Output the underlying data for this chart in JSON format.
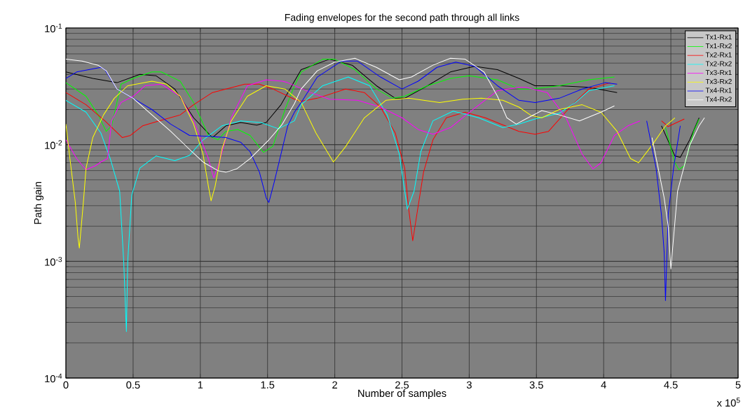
{
  "chart_data": {
    "type": "line",
    "title": "Fading envelopes for the second path through all links",
    "xlabel": "Number of samples",
    "ylabel": "Path gain",
    "annotations": [
      "x 10$^{5}$"
    ],
    "log": "y",
    "grid": true,
    "legend": "top right",
    "line_style": "solid",
    "xlim": [
      0,
      5
    ],
    "ylim": [
      0.0001,
      0.1
    ],
    "xticks": [
      0,
      0.5,
      1,
      1.5,
      2,
      2.5,
      3,
      3.5,
      4,
      4.5,
      5
    ],
    "yticks": [
      {
        "value": 0.0001,
        "label": "10$^{-4}$"
      },
      {
        "value": 0.001,
        "label": "10$^{-3}$"
      },
      {
        "value": 0.01,
        "label": "10$^{-2}$"
      },
      {
        "value": 0.1,
        "label": "10$^{-1}$"
      }
    ],
    "series": [
      {
        "name": "Tx1-Rx1",
        "color": "#000000",
        "x": [
          0,
          0.2,
          0.38,
          0.55,
          0.67,
          0.81,
          0.95,
          1.09,
          1.19,
          1.3,
          1.42,
          1.49,
          1.6,
          1.7,
          1.75,
          1.96,
          2.13,
          2.31,
          2.45,
          2.52,
          2.69,
          2.86,
          3.04,
          3.21,
          3.37,
          3.49,
          3.67,
          3.89,
          4.1,
          4.3,
          4.43,
          4.53,
          4.57,
          4.64,
          4.71
        ],
        "values": [
          0.042,
          0.037,
          0.034,
          0.04,
          0.039,
          0.03,
          0.017,
          0.0115,
          0.0145,
          0.0155,
          0.0147,
          0.0155,
          0.022,
          0.035,
          0.044,
          0.054,
          0.048,
          0.032,
          0.025,
          0.025,
          0.032,
          0.042,
          0.047,
          0.044,
          0.037,
          0.032,
          0.032,
          0.031,
          0.028,
          null,
          0.0145,
          0.008,
          0.0078,
          0.011,
          0.017
        ]
      },
      {
        "name": "Tx1-Rx2",
        "color": "#00ff00",
        "x": [
          0,
          0.15,
          0.24,
          0.3,
          0.34,
          0.41,
          0.5,
          0.64,
          0.71,
          0.85,
          0.95,
          1.06,
          1.13,
          1.19,
          1.28,
          1.37,
          1.47,
          1.54,
          1.63,
          1.7,
          1.75,
          1.91,
          2.0,
          2.15,
          2.31,
          2.43,
          2.52,
          2.69,
          2.86,
          3.0,
          3.21,
          3.37,
          3.47,
          3.67,
          3.89,
          4.08,
          4.3,
          4.46,
          4.53,
          4.56,
          4.6,
          4.67,
          4.71
        ],
        "values": [
          0.034,
          0.026,
          0.018,
          0.013,
          0.0145,
          0.033,
          0.037,
          0.042,
          0.042,
          0.035,
          0.023,
          0.012,
          0.011,
          0.013,
          0.0135,
          0.012,
          0.0086,
          0.0097,
          0.02,
          0.032,
          0.042,
          0.054,
          0.054,
          0.044,
          0.03,
          0.025,
          0.026,
          0.032,
          0.037,
          0.039,
          0.036,
          0.03,
          0.03,
          0.032,
          0.036,
          0.038,
          null,
          0.014,
          0.007,
          0.0061,
          0.0066,
          0.013,
          0.0166
        ]
      },
      {
        "name": "Tx2-Rx1",
        "color": "#ff0000",
        "x": [
          0,
          0.15,
          0.29,
          0.42,
          0.48,
          0.57,
          0.71,
          0.85,
          0.95,
          1.09,
          1.33,
          1.44,
          1.54,
          1.7,
          1.75,
          1.87,
          2.08,
          2.22,
          2.34,
          2.45,
          2.52,
          2.55,
          2.58,
          2.61,
          2.66,
          2.73,
          2.83,
          2.97,
          3.12,
          3.37,
          3.49,
          3.59,
          3.75,
          3.89,
          4.05,
          4.3,
          4.43,
          4.48,
          4.6
        ],
        "values": [
          0.028,
          0.022,
          0.016,
          0.0115,
          0.012,
          0.0145,
          0.0162,
          0.018,
          0.022,
          0.028,
          0.033,
          0.033,
          0.03,
          0.0245,
          0.0235,
          0.025,
          0.03,
          0.028,
          0.021,
          0.0126,
          0.0063,
          0.0028,
          0.0015,
          0.0025,
          0.0058,
          0.011,
          0.017,
          0.019,
          0.017,
          0.013,
          0.0123,
          0.013,
          0.021,
          0.03,
          0.034,
          null,
          0.016,
          0.0143,
          0.0166
        ]
      },
      {
        "name": "Tx2-Rx2",
        "color": "#00ffff",
        "x": [
          0,
          0.15,
          0.26,
          0.33,
          0.4,
          0.43,
          0.45,
          0.46,
          0.49,
          0.55,
          0.67,
          0.81,
          0.92,
          1.02,
          1.16,
          1.3,
          1.45,
          1.58,
          1.7,
          1.75,
          1.91,
          2.1,
          2.26,
          2.39,
          2.48,
          2.54,
          2.59,
          2.64,
          2.73,
          2.88,
          3.07,
          3.25,
          3.37,
          3.49,
          3.67,
          3.79,
          3.89,
          4.08
        ],
        "values": [
          0.024,
          0.019,
          0.0126,
          0.0076,
          0.004,
          0.001,
          0.00025,
          0.001,
          0.0037,
          0.0063,
          0.008,
          0.0073,
          0.0081,
          0.011,
          0.0145,
          0.016,
          0.0155,
          0.0137,
          0.016,
          0.022,
          0.032,
          0.038,
          0.032,
          0.018,
          0.0083,
          0.0028,
          0.004,
          0.0087,
          0.016,
          0.0194,
          0.017,
          0.014,
          0.015,
          0.0166,
          0.0186,
          0.023,
          0.029,
          0.032
        ]
      },
      {
        "name": "Tx3-Rx1",
        "color": "#ff00ff",
        "x": [
          0,
          0.08,
          0.15,
          0.22,
          0.26,
          0.31,
          0.34,
          0.41,
          0.5,
          0.59,
          0.71,
          0.85,
          0.95,
          1.06,
          1.1,
          1.14,
          1.23,
          1.35,
          1.49,
          1.61,
          1.65,
          1.82,
          1.96,
          2.17,
          2.34,
          2.5,
          2.62,
          2.73,
          2.86,
          3.04,
          3.21,
          3.37,
          3.42,
          3.58,
          3.72,
          3.84,
          3.92,
          3.98,
          4.08,
          4.18,
          4.27
        ],
        "values": [
          0.011,
          0.0076,
          0.0061,
          0.0066,
          0.0071,
          0.0076,
          0.016,
          0.023,
          0.026,
          0.032,
          0.033,
          0.026,
          0.016,
          0.0076,
          0.0052,
          0.007,
          0.017,
          0.032,
          0.036,
          0.035,
          0.034,
          0.028,
          0.0245,
          0.024,
          0.021,
          0.017,
          0.0135,
          0.0123,
          0.014,
          0.0205,
          0.029,
          0.031,
          0.031,
          0.028,
          0.017,
          0.0083,
          0.0062,
          0.007,
          0.012,
          0.0145,
          0.016
        ]
      },
      {
        "name": "Tx3-Rx2",
        "color": "#ffff00",
        "x": [
          0,
          0.03,
          0.07,
          0.09,
          0.1,
          0.13,
          0.15,
          0.2,
          0.28,
          0.36,
          0.46,
          0.64,
          0.75,
          0.85,
          0.95,
          1.02,
          1.06,
          1.08,
          1.11,
          1.16,
          1.23,
          1.35,
          1.49,
          1.63,
          1.75,
          1.86,
          1.99,
          2.08,
          2.22,
          2.38,
          2.55,
          2.78,
          2.95,
          3.09,
          3.25,
          3.37,
          3.46,
          3.54,
          3.67,
          3.84,
          3.98,
          4.1,
          4.2,
          4.26,
          4.36,
          4.46,
          4.53
        ],
        "values": [
          0.015,
          0.0076,
          0.0032,
          0.0016,
          0.0013,
          0.0032,
          0.0063,
          0.0115,
          0.018,
          0.025,
          0.032,
          0.035,
          0.033,
          0.026,
          0.015,
          0.0083,
          0.0044,
          0.0033,
          0.0044,
          0.0091,
          0.016,
          0.026,
          0.032,
          0.03,
          0.023,
          0.0126,
          0.0071,
          0.0096,
          0.017,
          0.024,
          0.025,
          0.023,
          0.0245,
          0.025,
          0.024,
          0.021,
          0.0178,
          0.017,
          0.02,
          0.022,
          0.019,
          0.013,
          0.0076,
          0.007,
          0.0099,
          0.0145,
          0.017
        ]
      },
      {
        "name": "Tx4-Rx1",
        "color": "#0000ff",
        "x": [
          0,
          0.08,
          0.26,
          0.29,
          0.38,
          0.5,
          0.64,
          0.78,
          0.92,
          1.06,
          1.19,
          1.3,
          1.37,
          1.44,
          1.49,
          1.51,
          1.55,
          1.6,
          1.65,
          1.7,
          1.75,
          1.87,
          2.05,
          2.17,
          2.34,
          2.5,
          2.62,
          2.76,
          2.9,
          3.04,
          3.21,
          3.37,
          3.49,
          3.67,
          3.84,
          4.01,
          4.1,
          4.2,
          4.32,
          4.39,
          4.43,
          4.45,
          4.46,
          4.48,
          4.52,
          4.57
        ],
        "values": [
          0.037,
          0.042,
          0.046,
          0.044,
          0.03,
          0.025,
          0.02,
          0.015,
          0.012,
          0.0118,
          0.0115,
          0.0105,
          0.0087,
          0.0058,
          0.0035,
          0.0032,
          0.0048,
          0.0083,
          0.0145,
          0.019,
          0.023,
          0.038,
          0.052,
          0.052,
          0.038,
          0.03,
          0.035,
          0.046,
          0.051,
          0.047,
          0.032,
          0.024,
          0.023,
          0.025,
          0.03,
          0.034,
          0.033,
          null,
          0.016,
          0.0063,
          0.0025,
          0.0012,
          0.00046,
          0.0025,
          0.0063,
          0.0145
        ]
      },
      {
        "name": "Tx4-Rx2",
        "color": "#ffffff",
        "x": [
          0,
          0.12,
          0.24,
          0.3,
          0.38,
          0.5,
          0.64,
          0.78,
          0.92,
          1.02,
          1.13,
          1.19,
          1.27,
          1.37,
          1.51,
          1.61,
          1.7,
          1.75,
          1.87,
          2.0,
          2.15,
          2.31,
          2.48,
          2.57,
          2.73,
          2.86,
          2.97,
          3.11,
          3.21,
          3.28,
          3.35,
          3.42,
          3.54,
          3.67,
          3.82,
          3.98,
          4.08,
          4.2,
          4.36,
          4.45,
          4.48,
          4.5,
          4.52,
          4.55,
          4.64,
          4.71,
          4.75
        ],
        "values": [
          0.054,
          0.052,
          0.048,
          0.043,
          0.03,
          0.025,
          0.018,
          0.013,
          0.0091,
          0.0071,
          0.006,
          0.0058,
          0.0062,
          0.0076,
          0.011,
          0.015,
          0.0225,
          0.03,
          0.043,
          0.051,
          0.055,
          0.046,
          0.036,
          0.038,
          0.048,
          0.055,
          0.054,
          0.042,
          0.026,
          0.017,
          0.015,
          0.0166,
          0.0196,
          0.018,
          0.016,
          0.019,
          0.0215,
          null,
          0.0115,
          0.0035,
          0.002,
          0.00086,
          0.0016,
          0.004,
          0.0099,
          0.0145,
          0.017
        ]
      }
    ]
  }
}
